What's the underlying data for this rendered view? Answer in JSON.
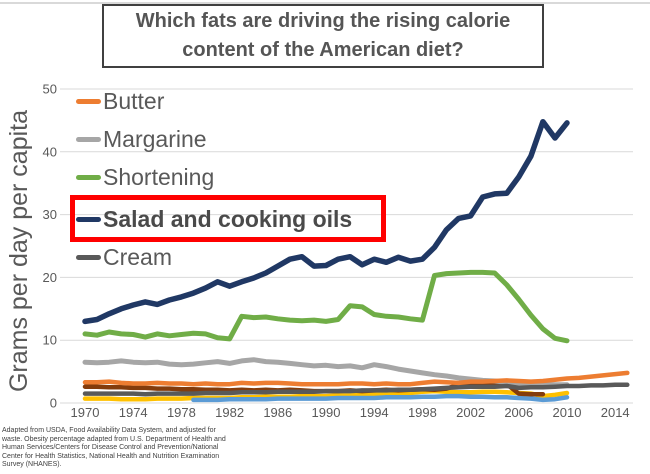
{
  "header": {
    "title": "Which fats are driving the rising calorie\ncontent of the American diet?"
  },
  "source_note": "Adapted from USDA, Food Availability Data System, and adjusted for waste. Obesity percentage adapted from U.S. Department of Health and Human Services/Centers for Disease Control and Prevention/National Center for Health Statistics, National Health and Nutrition Examination Survey (NHANES).",
  "chart_data": {
    "type": "line",
    "title": "Which fats are driving the rising calorie content of the American diet?",
    "xlabel": "",
    "ylabel": "Grams per day per capita",
    "ylim": [
      0,
      50
    ],
    "y_ticks": [
      0,
      10,
      20,
      30,
      40,
      50
    ],
    "x_ticks": [
      1970,
      1974,
      1978,
      1982,
      1986,
      1990,
      1994,
      1998,
      2002,
      2006,
      2010,
      2014
    ],
    "grid": "horizontal",
    "grid_color": "#d9d9d9",
    "tick_label_color": "#595959",
    "legend_position": "top-left",
    "highlighted_series": "Salad and cooking oils",
    "highlight_color": "#ff0000",
    "series": [
      {
        "name": "Butter",
        "color": "#ED7D31",
        "in_legend": true,
        "start_year": 1970,
        "values": [
          3.3,
          3.3,
          3.4,
          3.2,
          3.1,
          3.1,
          3.2,
          3.1,
          3.1,
          3.0,
          3.1,
          3.0,
          3.0,
          3.2,
          3.1,
          3.2,
          3.2,
          3.1,
          3.0,
          3.0,
          3.0,
          3.0,
          3.1,
          3.1,
          3.0,
          3.1,
          3.0,
          3.0,
          3.2,
          3.4,
          3.3,
          3.2,
          3.4,
          3.4,
          3.5,
          3.6,
          3.5,
          3.4,
          3.5,
          3.7,
          3.9,
          4.0,
          4.2,
          4.4,
          4.6,
          4.8
        ]
      },
      {
        "name": "Margarine",
        "color": "#A6A6A6",
        "in_legend": true,
        "start_year": 1970,
        "values": [
          6.5,
          6.4,
          6.5,
          6.7,
          6.5,
          6.4,
          6.5,
          6.2,
          6.1,
          6.2,
          6.4,
          6.6,
          6.3,
          6.7,
          6.9,
          6.6,
          6.5,
          6.3,
          6.1,
          5.9,
          6.0,
          5.8,
          5.9,
          5.6,
          6.1,
          5.8,
          5.4,
          5.1,
          4.8,
          4.5,
          4.3,
          4.0,
          3.8,
          3.6,
          3.5,
          3.3,
          3.1,
          3.0,
          3.0,
          2.9,
          2.9
        ]
      },
      {
        "name": "Shortening",
        "color": "#70AD47",
        "in_legend": true,
        "start_year": 1970,
        "values": [
          11.0,
          10.8,
          11.3,
          11.0,
          10.9,
          10.5,
          11.0,
          10.7,
          10.9,
          11.1,
          11.0,
          10.4,
          10.2,
          13.8,
          13.6,
          13.7,
          13.4,
          13.2,
          13.1,
          13.2,
          13.0,
          13.3,
          15.5,
          15.3,
          14.1,
          13.8,
          13.7,
          13.4,
          13.2,
          20.3,
          20.6,
          20.7,
          20.8,
          20.8,
          20.7,
          18.8,
          16.5,
          14.0,
          11.8,
          10.3,
          9.9
        ]
      },
      {
        "name": "Salad and cooking oils",
        "color": "#203864",
        "in_legend": true,
        "start_year": 1970,
        "values": [
          13.0,
          13.3,
          14.2,
          15.0,
          15.6,
          16.1,
          15.7,
          16.4,
          16.9,
          17.5,
          18.3,
          19.3,
          18.6,
          19.3,
          19.9,
          20.7,
          21.8,
          22.9,
          23.3,
          21.8,
          21.9,
          22.9,
          23.3,
          22.0,
          22.9,
          22.4,
          23.2,
          22.6,
          22.9,
          24.8,
          27.6,
          29.4,
          29.8,
          32.8,
          33.3,
          33.4,
          36.0,
          39.3,
          44.8,
          42.2,
          44.6
        ]
      },
      {
        "name": "Cream",
        "color": "#595959",
        "in_legend": true,
        "start_year": 1970,
        "values": [
          1.5,
          1.5,
          1.5,
          1.5,
          1.5,
          1.4,
          1.5,
          1.5,
          1.5,
          1.5,
          1.6,
          1.6,
          1.6,
          1.7,
          1.7,
          1.7,
          1.8,
          1.8,
          1.8,
          1.8,
          1.9,
          1.9,
          1.9,
          2.0,
          2.0,
          2.0,
          2.1,
          2.1,
          2.2,
          2.3,
          2.4,
          2.5,
          2.6,
          2.6,
          2.6,
          2.7,
          2.4,
          2.5,
          2.5,
          2.6,
          2.7,
          2.7,
          2.8,
          2.8,
          2.9,
          2.9
        ]
      },
      {
        "name": "unlabeled dark red line",
        "color": "#843C0C",
        "in_legend": false,
        "start_year": 1970,
        "values": [
          2.6,
          2.6,
          2.5,
          2.5,
          2.4,
          2.4,
          2.3,
          2.3,
          2.2,
          2.2,
          2.1,
          2.1,
          2.0,
          2.1,
          2.0,
          2.1,
          2.0,
          2.1,
          2.0,
          1.9,
          1.9,
          1.9,
          2.0,
          1.9,
          2.0,
          2.1,
          2.0,
          2.1,
          2.2,
          2.1,
          2.3,
          2.9,
          3.2,
          3.3,
          3.2,
          3.0,
          1.5,
          1.4,
          1.4
        ]
      },
      {
        "name": "unlabeled yellow line",
        "color": "#FFC000",
        "in_legend": false,
        "start_year": 1970,
        "values": [
          0.7,
          0.7,
          0.7,
          0.6,
          0.6,
          0.6,
          0.7,
          0.7,
          0.7,
          0.8,
          0.8,
          0.8,
          0.8,
          0.9,
          0.9,
          1.0,
          1.0,
          1.0,
          1.1,
          1.1,
          1.1,
          1.2,
          1.2,
          1.3,
          1.3,
          1.4,
          1.5,
          1.6,
          1.8,
          1.9,
          1.8,
          1.7,
          1.7,
          1.8,
          1.8,
          1.7,
          1.6,
          1.5,
          1.1,
          1.3,
          1.6
        ]
      },
      {
        "name": "unlabeled light blue line",
        "color": "#5B9BD5",
        "in_legend": false,
        "start_year": 1979,
        "values": [
          0.5,
          0.5,
          0.5,
          0.6,
          0.6,
          0.6,
          0.6,
          0.7,
          0.7,
          0.7,
          0.7,
          0.7,
          0.8,
          0.8,
          0.8,
          0.8,
          0.9,
          0.9,
          0.9,
          1.0,
          1.0,
          1.1,
          1.1,
          1.0,
          1.0,
          0.9,
          0.9,
          0.8,
          0.7,
          0.5,
          0.6,
          0.9
        ]
      }
    ]
  }
}
